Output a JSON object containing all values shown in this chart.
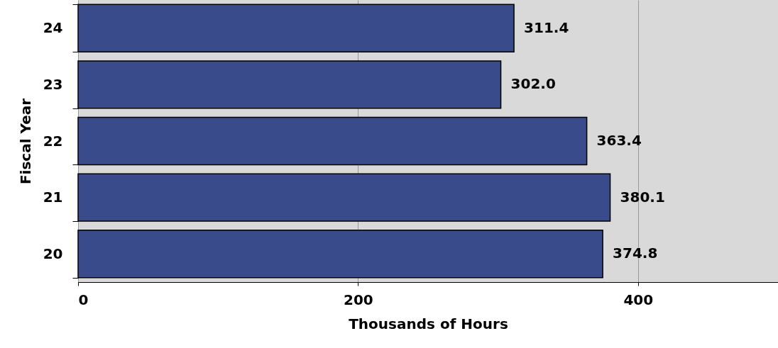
{
  "chart_data": {
    "type": "bar",
    "orientation": "horizontal",
    "xlabel": "Thousands of Hours",
    "ylabel": "Fiscal Year",
    "categories": [
      "24",
      "23",
      "22",
      "21",
      "20"
    ],
    "values": [
      311.4,
      302.0,
      363.4,
      380.1,
      374.8
    ],
    "value_labels": [
      "311.4",
      "302.0",
      "363.4",
      "380.1",
      "374.8"
    ],
    "color": "#3a4b8c",
    "xlim": [
      0,
      500
    ],
    "xticks": [
      0,
      200,
      400
    ],
    "grid": "x"
  }
}
